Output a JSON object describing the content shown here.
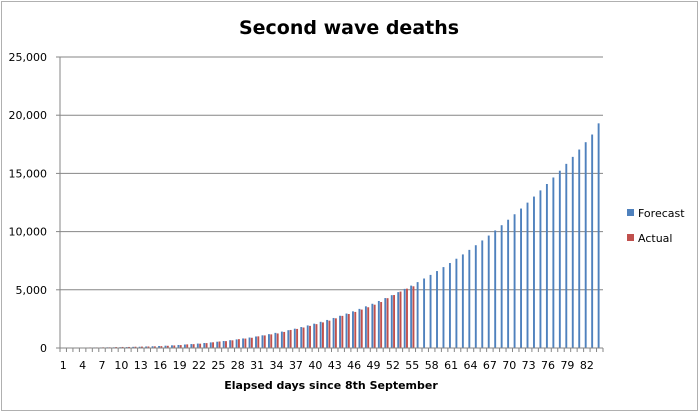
{
  "chart_data": {
    "type": "bar",
    "title": "Second wave deaths",
    "xlabel": "Elapsed days since 8th September",
    "ylabel": "",
    "ylim": [
      0,
      25000
    ],
    "yticks": [
      "0",
      "5,000",
      "10,000",
      "15,000",
      "20,000",
      "25,000"
    ],
    "ytick_values": [
      0,
      5000,
      10000,
      15000,
      20000,
      25000
    ],
    "xtick_labels": [
      "1",
      "4",
      "7",
      "10",
      "13",
      "16",
      "19",
      "22",
      "25",
      "28",
      "31",
      "34",
      "37",
      "40",
      "43",
      "46",
      "49",
      "52",
      "55",
      "58",
      "61",
      "64",
      "67",
      "70",
      "73",
      "76",
      "79",
      "82"
    ],
    "grid": true,
    "legend_position": "right",
    "categories_range": [
      1,
      84
    ],
    "series": [
      {
        "name": "Forecast",
        "color": "#4f81bd",
        "values": [
          40,
          40,
          40,
          40,
          40,
          50,
          50,
          60,
          60,
          70,
          80,
          100,
          110,
          130,
          150,
          170,
          200,
          230,
          260,
          300,
          340,
          380,
          430,
          480,
          540,
          600,
          670,
          740,
          820,
          900,
          990,
          1090,
          1190,
          1300,
          1410,
          1530,
          1660,
          1800,
          1940,
          2090,
          2250,
          2410,
          2580,
          2770,
          2960,
          3150,
          3360,
          3580,
          3800,
          4040,
          4290,
          4540,
          4800,
          5080,
          5360,
          5660,
          5970,
          6280,
          6610,
          6950,
          7300,
          7670,
          8040,
          8430,
          8830,
          9240,
          9660,
          10100,
          10550,
          11020,
          11490,
          11980,
          12490,
          13010,
          13540,
          14090,
          14650,
          15230,
          15820,
          16420,
          17050,
          17680,
          18340,
          19300
        ]
      },
      {
        "name": "Actual",
        "color": "#c0504d",
        "values": [
          40,
          30,
          40,
          40,
          50,
          50,
          60,
          60,
          80,
          90,
          90,
          110,
          120,
          130,
          140,
          160,
          190,
          220,
          250,
          310,
          330,
          370,
          420,
          490,
          560,
          590,
          660,
          760,
          810,
          880,
          1000,
          1080,
          1170,
          1250,
          1380,
          1550,
          1640,
          1760,
          1900,
          2050,
          2200,
          2350,
          2550,
          2760,
          2920,
          3100,
          3300,
          3500,
          3720,
          3950,
          4280,
          4550,
          4850,
          5100,
          5300
        ]
      }
    ]
  }
}
